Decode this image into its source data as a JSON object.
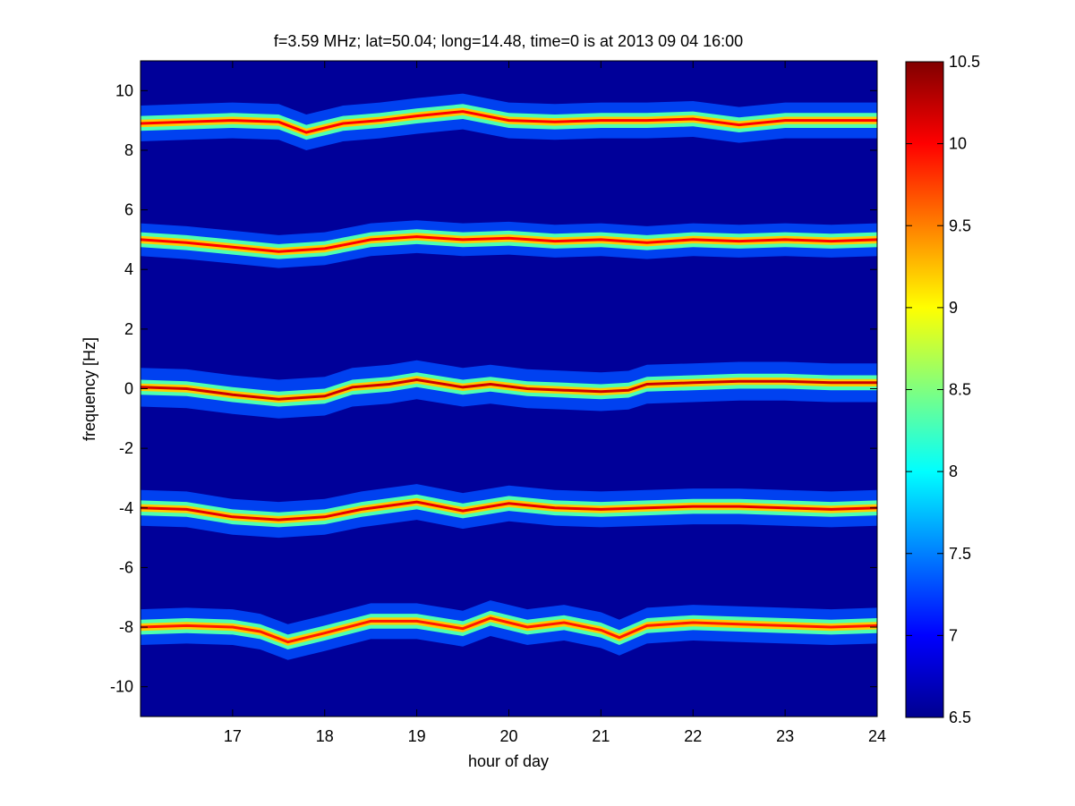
{
  "chart_data": {
    "type": "heatmap",
    "title": "f=3.59 MHz;  lat=50.04; long=14.48, time=0 is at 2013 09 04 16:00",
    "xlabel": "hour of day",
    "ylabel": "frequency [Hz]",
    "xlim": [
      16.0,
      24.0
    ],
    "ylim": [
      -11.0,
      11.0
    ],
    "x_ticks": [
      17,
      18,
      19,
      20,
      21,
      22,
      23,
      24
    ],
    "y_ticks": [
      -10,
      -8,
      -6,
      -4,
      -2,
      0,
      2,
      4,
      6,
      8,
      10
    ],
    "grid": false,
    "colormap": "jet",
    "background_value": 6.6,
    "colorbar": {
      "range": [
        6.5,
        10.5
      ],
      "ticks": [
        6.5,
        7,
        7.5,
        8,
        8.5,
        9,
        9.5,
        10,
        10.5
      ],
      "position": "right"
    },
    "bands": [
      {
        "center_hz": 9.0,
        "trace": [
          [
            16.0,
            8.9
          ],
          [
            16.5,
            8.95
          ],
          [
            17.0,
            9.0
          ],
          [
            17.5,
            8.95
          ],
          [
            17.8,
            8.6
          ],
          [
            18.2,
            8.9
          ],
          [
            18.6,
            9.0
          ],
          [
            19.0,
            9.15
          ],
          [
            19.5,
            9.3
          ],
          [
            20.0,
            9.0
          ],
          [
            20.5,
            8.95
          ],
          [
            21.0,
            9.0
          ],
          [
            21.5,
            9.0
          ],
          [
            22.0,
            9.05
          ],
          [
            22.5,
            8.85
          ],
          [
            23.0,
            9.0
          ],
          [
            23.5,
            9.0
          ],
          [
            24.0,
            9.0
          ]
        ],
        "core_value": 10.0,
        "halo_hz": 0.25,
        "glow_hz": 0.6
      },
      {
        "center_hz": 5.0,
        "trace": [
          [
            16.0,
            5.0
          ],
          [
            16.5,
            4.9
          ],
          [
            17.0,
            4.75
          ],
          [
            17.5,
            4.6
          ],
          [
            18.0,
            4.7
          ],
          [
            18.5,
            5.0
          ],
          [
            19.0,
            5.1
          ],
          [
            19.5,
            5.0
          ],
          [
            20.0,
            5.05
          ],
          [
            20.5,
            4.95
          ],
          [
            21.0,
            5.0
          ],
          [
            21.5,
            4.9
          ],
          [
            22.0,
            5.0
          ],
          [
            22.5,
            4.95
          ],
          [
            23.0,
            5.0
          ],
          [
            23.5,
            4.95
          ],
          [
            24.0,
            5.0
          ]
        ],
        "core_value": 10.0,
        "halo_hz": 0.25,
        "glow_hz": 0.55
      },
      {
        "center_hz": 0.0,
        "trace": [
          [
            16.0,
            0.05
          ],
          [
            16.5,
            0.0
          ],
          [
            17.0,
            -0.2
          ],
          [
            17.5,
            -0.35
          ],
          [
            18.0,
            -0.25
          ],
          [
            18.3,
            0.05
          ],
          [
            18.7,
            0.15
          ],
          [
            19.0,
            0.3
          ],
          [
            19.5,
            0.05
          ],
          [
            19.8,
            0.15
          ],
          [
            20.2,
            0.0
          ],
          [
            20.6,
            -0.05
          ],
          [
            21.0,
            -0.1
          ],
          [
            21.3,
            -0.05
          ],
          [
            21.5,
            0.15
          ],
          [
            22.0,
            0.2
          ],
          [
            22.5,
            0.25
          ],
          [
            23.0,
            0.25
          ],
          [
            23.5,
            0.2
          ],
          [
            24.0,
            0.2
          ]
        ],
        "core_value": 10.2,
        "halo_hz": 0.25,
        "glow_hz": 0.65
      },
      {
        "center_hz": -4.0,
        "trace": [
          [
            16.0,
            -4.0
          ],
          [
            16.5,
            -4.05
          ],
          [
            17.0,
            -4.3
          ],
          [
            17.5,
            -4.4
          ],
          [
            18.0,
            -4.3
          ],
          [
            18.4,
            -4.05
          ],
          [
            19.0,
            -3.8
          ],
          [
            19.5,
            -4.1
          ],
          [
            20.0,
            -3.85
          ],
          [
            20.5,
            -4.0
          ],
          [
            21.0,
            -4.05
          ],
          [
            21.5,
            -4.0
          ],
          [
            22.0,
            -3.95
          ],
          [
            22.5,
            -3.95
          ],
          [
            23.0,
            -4.0
          ],
          [
            23.5,
            -4.05
          ],
          [
            24.0,
            -4.0
          ]
        ],
        "core_value": 10.1,
        "halo_hz": 0.25,
        "glow_hz": 0.6
      },
      {
        "center_hz": -8.0,
        "trace": [
          [
            16.0,
            -8.0
          ],
          [
            16.5,
            -7.95
          ],
          [
            17.0,
            -8.0
          ],
          [
            17.3,
            -8.15
          ],
          [
            17.6,
            -8.5
          ],
          [
            18.0,
            -8.2
          ],
          [
            18.5,
            -7.8
          ],
          [
            19.0,
            -7.8
          ],
          [
            19.5,
            -8.05
          ],
          [
            19.8,
            -7.7
          ],
          [
            20.2,
            -8.0
          ],
          [
            20.6,
            -7.85
          ],
          [
            21.0,
            -8.1
          ],
          [
            21.2,
            -8.35
          ],
          [
            21.5,
            -7.95
          ],
          [
            22.0,
            -7.85
          ],
          [
            22.5,
            -7.9
          ],
          [
            23.0,
            -7.95
          ],
          [
            23.5,
            -8.0
          ],
          [
            24.0,
            -7.95
          ]
        ],
        "core_value": 9.9,
        "halo_hz": 0.25,
        "glow_hz": 0.6
      }
    ]
  }
}
